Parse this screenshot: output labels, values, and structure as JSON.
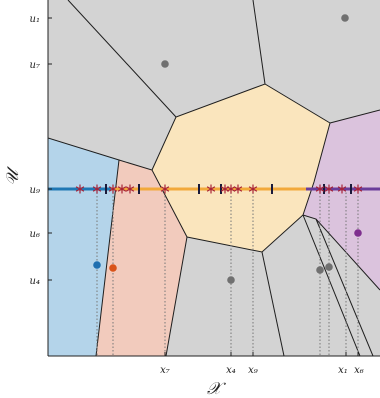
{
  "figure": {
    "x_axis_label": "𝒳",
    "y_axis_label": "𝒰",
    "y_ticks": [
      "u₁",
      "u₇",
      "u₉",
      "u₆",
      "u₄"
    ],
    "x_ticks": [
      "x₇",
      "x₄",
      "x₉",
      "x₁",
      "x₆"
    ]
  },
  "colors": {
    "gray_region": "#d3d3d3",
    "blue_region": "#b4d4ea",
    "orange_region": "#f2cbbd",
    "yellow_region": "#fae5bd",
    "purple_region": "#dbc3dd",
    "blue_line": "#1f77b4",
    "orange_line": "#f2a93b",
    "purple_line": "#6a3d9a",
    "star_marker": "#a8243a",
    "bar_marker": "#1a1a3a",
    "blue_point": "#1f6fb0",
    "orange_point": "#d95319",
    "purple_point": "#7e2f8e",
    "gray_point": "#707070"
  }
}
